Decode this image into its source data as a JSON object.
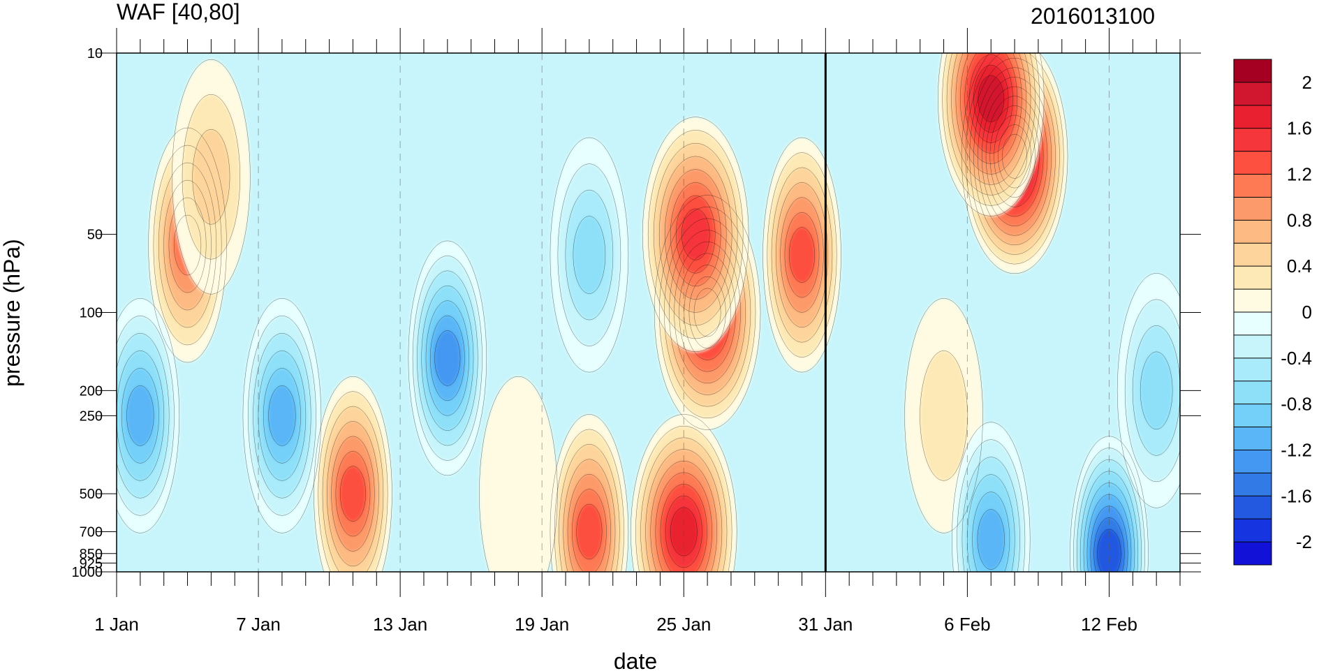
{
  "chart_data": {
    "type": "heatmap",
    "title": "WAF [40,80]",
    "subtitle": "2016013100",
    "xlabel": "date",
    "ylabel": "pressure (hPa)",
    "x_tick_labels": [
      "1 Jan",
      "7 Jan",
      "13 Jan",
      "19 Jan",
      "25 Jan",
      "31 Jan",
      "6 Feb",
      "12 Feb"
    ],
    "x_tick_days": [
      0,
      6,
      12,
      18,
      24,
      30,
      36,
      42
    ],
    "x_range_days": [
      0,
      45
    ],
    "y_tick_labels": [
      "10",
      "50",
      "100",
      "200",
      "250",
      "500",
      "700",
      "850",
      "925",
      "1000"
    ],
    "y_ticks": [
      10,
      50,
      100,
      200,
      250,
      500,
      700,
      850,
      925,
      1000
    ],
    "ylim": [
      10,
      1000
    ],
    "y_scale": "log",
    "y_reversed": true,
    "highlight_date": "31 Jan",
    "colorbar": {
      "labels": [
        "2",
        "1.6",
        "1.2",
        "0.8",
        "0.4",
        "0",
        "-0.4",
        "-0.8",
        "-1.2",
        "-1.6",
        "-2"
      ],
      "levels_top_to_bottom": [
        2.2,
        2.0,
        1.8,
        1.6,
        1.4,
        1.2,
        1.0,
        0.8,
        0.6,
        0.4,
        0.2,
        0,
        -0.2,
        -0.4,
        -0.6,
        -0.8,
        -1.0,
        -1.2,
        -1.4,
        -1.6,
        -1.8,
        -2.0,
        -2.2
      ],
      "colors": [
        "#a50021",
        "#d1172f",
        "#e8202f",
        "#f5363b",
        "#fd5040",
        "#fd7a55",
        "#fd9a6b",
        "#fdba83",
        "#fdd59c",
        "#fde9b5",
        "#fffbe3",
        "#e8ffff",
        "#c8f5fb",
        "#a9ebfa",
        "#8ee0f9",
        "#74d0f9",
        "#5ab6f6",
        "#4598f1",
        "#327be6",
        "#2358e0",
        "#1634e0",
        "#1111d8"
      ]
    },
    "features": [
      {
        "date_day": 38,
        "pressure": 25,
        "value": 2.2
      },
      {
        "date_day": 37,
        "pressure": 15,
        "value": 2.0
      },
      {
        "date_day": 25,
        "pressure": 100,
        "value": 1.8
      },
      {
        "date_day": 24.5,
        "pressure": 50,
        "value": 1.6
      },
      {
        "date_day": 29,
        "pressure": 60,
        "value": 1.4
      },
      {
        "date_day": 24,
        "pressure": 700,
        "value": 1.8
      },
      {
        "date_day": 20,
        "pressure": 700,
        "value": 1.4
      },
      {
        "date_day": 10,
        "pressure": 500,
        "value": 1.4
      },
      {
        "date_day": 3,
        "pressure": 55,
        "value": 1.2
      },
      {
        "date_day": 4,
        "pressure": 30,
        "value": 0.6
      },
      {
        "date_day": 35,
        "pressure": 250,
        "value": 0.4
      },
      {
        "date_day": 14,
        "pressure": 150,
        "value": -1.4
      },
      {
        "date_day": 7,
        "pressure": 250,
        "value": -1.2
      },
      {
        "date_day": 1,
        "pressure": 250,
        "value": -1.2
      },
      {
        "date_day": 42,
        "pressure": 850,
        "value": -1.8
      },
      {
        "date_day": 37,
        "pressure": 750,
        "value": -1.2
      },
      {
        "date_day": 20,
        "pressure": 60,
        "value": -0.8
      },
      {
        "date_day": 44,
        "pressure": 200,
        "value": -0.8
      },
      {
        "date_day": 17,
        "pressure": 500,
        "value": 0.2
      },
      {
        "date_day": 9,
        "pressure": 100,
        "value": 0.0
      }
    ]
  }
}
